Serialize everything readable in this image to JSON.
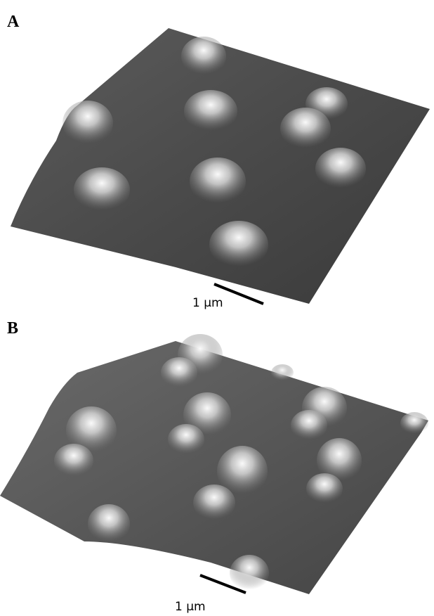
{
  "panels": [
    {
      "label": "A",
      "scale_bar": "1 μm"
    },
    {
      "label": "B",
      "scale_bar": "1 μm"
    }
  ]
}
